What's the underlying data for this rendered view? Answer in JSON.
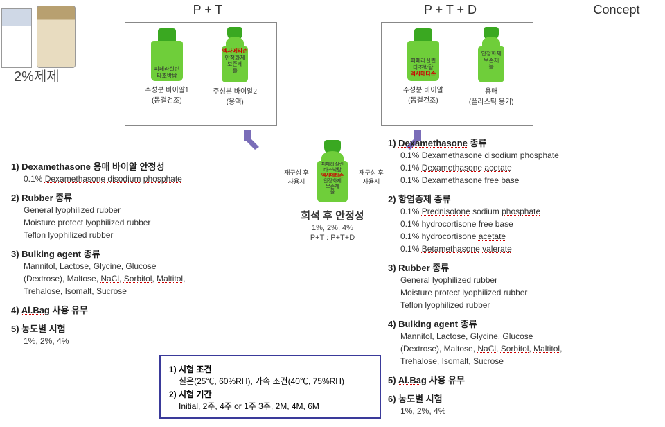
{
  "title": "2%제제",
  "headers": {
    "pt": "P + T",
    "ptd": "P + T + D",
    "concept": "Concept"
  },
  "colors": {
    "green": "#6fce3a",
    "darkgreen": "#3aa821",
    "white": "#ffffff",
    "arrow": "#7a6db8",
    "blueborder": "#3a3a9a"
  },
  "pt_group": {
    "b1_lines": [
      "피페라실린",
      "타조박탐"
    ],
    "b1_caption": "주성분 바이알1\n(동결건조)",
    "b2_lines": [
      "덱사메타손",
      "안정화제",
      "보존제",
      "물"
    ],
    "b2_caption": "주성분 바이알2\n(용액)"
  },
  "ptd_group": {
    "b1_lines": [
      "피페라실린",
      "타조박탐",
      "덱사메타손"
    ],
    "b1_caption": "주성분 바이알\n(동결건조)",
    "b2_lines": [
      "안정화제",
      "보존제",
      "물"
    ],
    "b2_caption": "용매\n(플라스틱 용기)"
  },
  "center": {
    "side_label_l": "재구성 후\n사용시",
    "side_label_r": "재구성 후\n사용시",
    "bottle_lines": [
      "피페라실린",
      "타조박탐",
      "덱사메타손",
      "안정화제",
      "보존제",
      "물"
    ],
    "title": "희석 후 안정성",
    "sub1": "1%, 2%, 4%",
    "sub2": "P+T : P+T+D"
  },
  "left_list": [
    {
      "head": "1) Dexamethasone 용매 바이알 안정성",
      "subs": [
        "0.1% Dexamethasone disodium phosphate"
      ]
    },
    {
      "head": "2) Rubber 종류",
      "subs": [
        "General lyophilized rubber",
        "Moisture protect lyophilized rubber",
        "Teflon lyophilized rubber"
      ]
    },
    {
      "head": "3) Bulking agent 종류",
      "subs": [
        "Mannitol, Lactose, Glycine, Glucose",
        "(Dextrose), Maltose, NaCl, Sorbitol, Maltitol,",
        "Trehalose, Isomalt, Sucrose"
      ]
    },
    {
      "head": "4) Al.Bag 사용 유무",
      "subs": []
    },
    {
      "head": "5) 농도별 시험",
      "subs": [
        "1%, 2%, 4%"
      ]
    }
  ],
  "right_list": [
    {
      "head": "1) Dexamethasone 종류",
      "subs": [
        "0.1% Dexamethasone disodium phosphate",
        "0.1% Dexamethasone acetate",
        "0.1% Dexamethasone free base"
      ]
    },
    {
      "head": "2) 항염증제 종류",
      "subs": [
        "0.1% Prednisolone sodium phosphate",
        "0.1% hydrocortisone free base",
        "0.1% hydrocortisone acetate",
        "0.1% Betamethasone valerate"
      ]
    },
    {
      "head": "3) Rubber 종류",
      "subs": [
        "General lyophilized rubber",
        "Moisture protect lyophilized rubber",
        "Teflon lyophilized rubber"
      ]
    },
    {
      "head": "4) Bulking agent 종류",
      "subs": [
        "Mannitol, Lactose, Glycine, Glucose",
        "(Dextrose), Maltose, NaCl, Sorbitol, Maltitol,",
        "Trehalose, Isomalt, Sucrose"
      ]
    },
    {
      "head": "5) Al.Bag 사용 유무",
      "subs": []
    },
    {
      "head": "6) 농도별 시험",
      "subs": [
        "1%, 2%, 4%"
      ]
    }
  ],
  "cond_box": {
    "h1": "1) 시험 조건",
    "s1": "실온(25℃, 60%RH), 가속 조건(40℃, 75%RH)",
    "h2": "2) 시험 기간",
    "s2": "Initial, 2주, 4주 or 1주 3주, 2M, 4M, 6M"
  }
}
